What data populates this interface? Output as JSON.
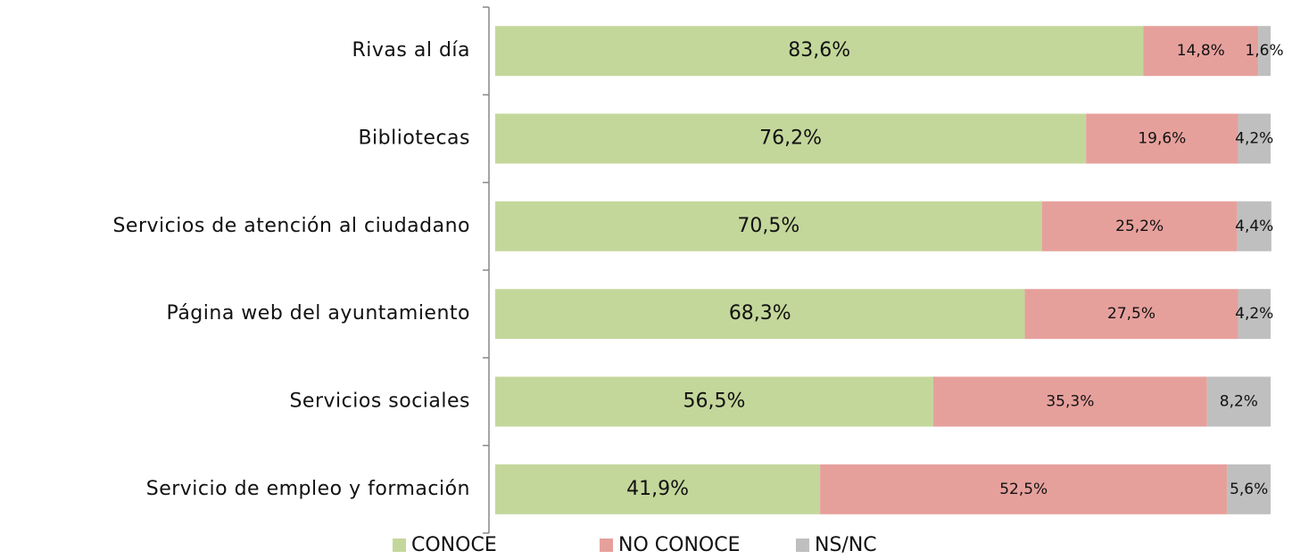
{
  "chart_data": {
    "type": "stacked-bar-horizontal",
    "categories": [
      "Rivas al día",
      "Bibliotecas",
      "Servicios de atención al ciudadano",
      "Página web del ayuntamiento",
      "Servicios sociales",
      "Servicio de empleo y formación"
    ],
    "series": [
      {
        "name": "CONOCE",
        "color": "#c4d79b",
        "values": [
          83.6,
          76.2,
          70.5,
          68.3,
          56.5,
          41.9
        ],
        "value_labels": [
          "83,6%",
          "76,2%",
          "70,5%",
          "68,3%",
          "56,5%",
          "41,9%"
        ]
      },
      {
        "name": "NO CONOCE",
        "color": "#e6a09c",
        "values": [
          14.8,
          19.6,
          25.2,
          27.5,
          35.3,
          52.5
        ],
        "value_labels": [
          "14,8%",
          "19,6%",
          "25,2%",
          "27,5%",
          "35,3%",
          "52,5%"
        ]
      },
      {
        "name": "NS/NC",
        "color": "#bfbfbf",
        "values": [
          1.6,
          4.2,
          4.4,
          4.2,
          8.2,
          5.6
        ],
        "value_labels": [
          "1,6%",
          "4,2%",
          "4,4%",
          "4,2%",
          "8,2%",
          "5,6%"
        ]
      }
    ],
    "xlim": [
      0,
      100
    ],
    "legend": "bottom"
  }
}
